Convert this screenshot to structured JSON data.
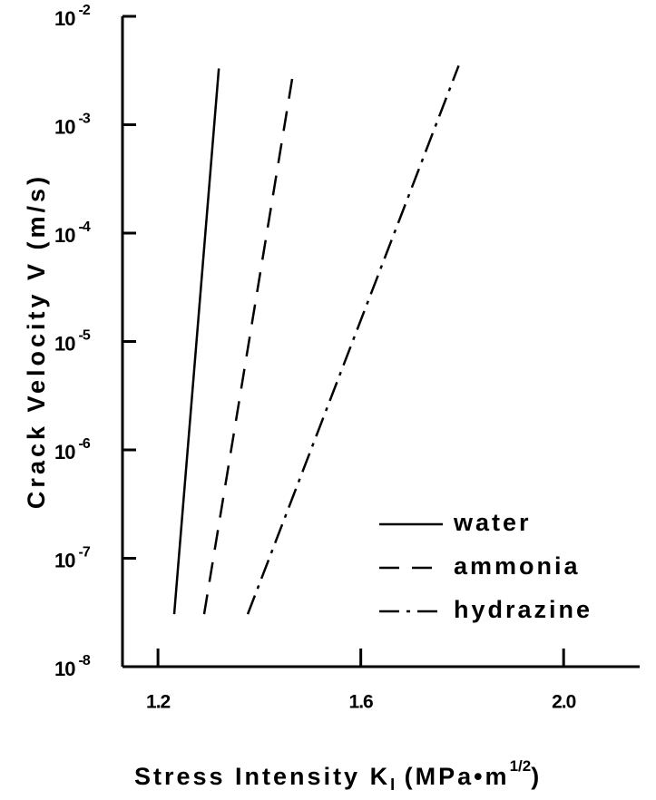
{
  "chart_data": {
    "type": "line",
    "ylabel": "Crack Velocity V (m/s)",
    "xlabel_parts": [
      {
        "text": "Stress Intensity K"
      },
      {
        "text": "I",
        "sub": true
      },
      {
        "text": " (MPa•m"
      },
      {
        "text": "1/2",
        "sup": true
      },
      {
        "text": ")"
      }
    ],
    "xlim": [
      1.13,
      2.15
    ],
    "xticks": [
      {
        "value": 1.2,
        "label": "1.2"
      },
      {
        "value": 1.6,
        "label": "1.6"
      },
      {
        "value": 2.0,
        "label": "2.0"
      }
    ],
    "ylim": [
      1e-08,
      0.01
    ],
    "log_y": true,
    "yticks": [
      {
        "value": 0.01,
        "label": "10",
        "exponent": "-2"
      },
      {
        "value": 0.001,
        "label": "10",
        "exponent": "-3"
      },
      {
        "value": 0.0001,
        "label": "10",
        "exponent": "-4"
      },
      {
        "value": 1e-05,
        "label": "10",
        "exponent": "-5"
      },
      {
        "value": 1e-06,
        "label": "10",
        "exponent": "-6"
      },
      {
        "value": 1e-07,
        "label": "10",
        "exponent": "-7"
      },
      {
        "value": 1e-08,
        "label": "10",
        "exponent": "-8"
      }
    ],
    "legend": "lower right",
    "series": [
      {
        "name": "water",
        "color": "#000000",
        "dash": "solid",
        "x": [
          1.232,
          1.32
        ],
        "values": [
          3.05e-08,
          0.0033
        ]
      },
      {
        "name": "ammonia",
        "color": "#000000",
        "dash": "dashed",
        "x": [
          1.291,
          1.468
        ],
        "values": [
          3.05e-08,
          0.0033
        ]
      },
      {
        "name": "hydrazine",
        "color": "#000000",
        "dash": "dashdot",
        "x": [
          1.377,
          1.793
        ],
        "values": [
          3.05e-08,
          0.0035
        ]
      }
    ]
  }
}
